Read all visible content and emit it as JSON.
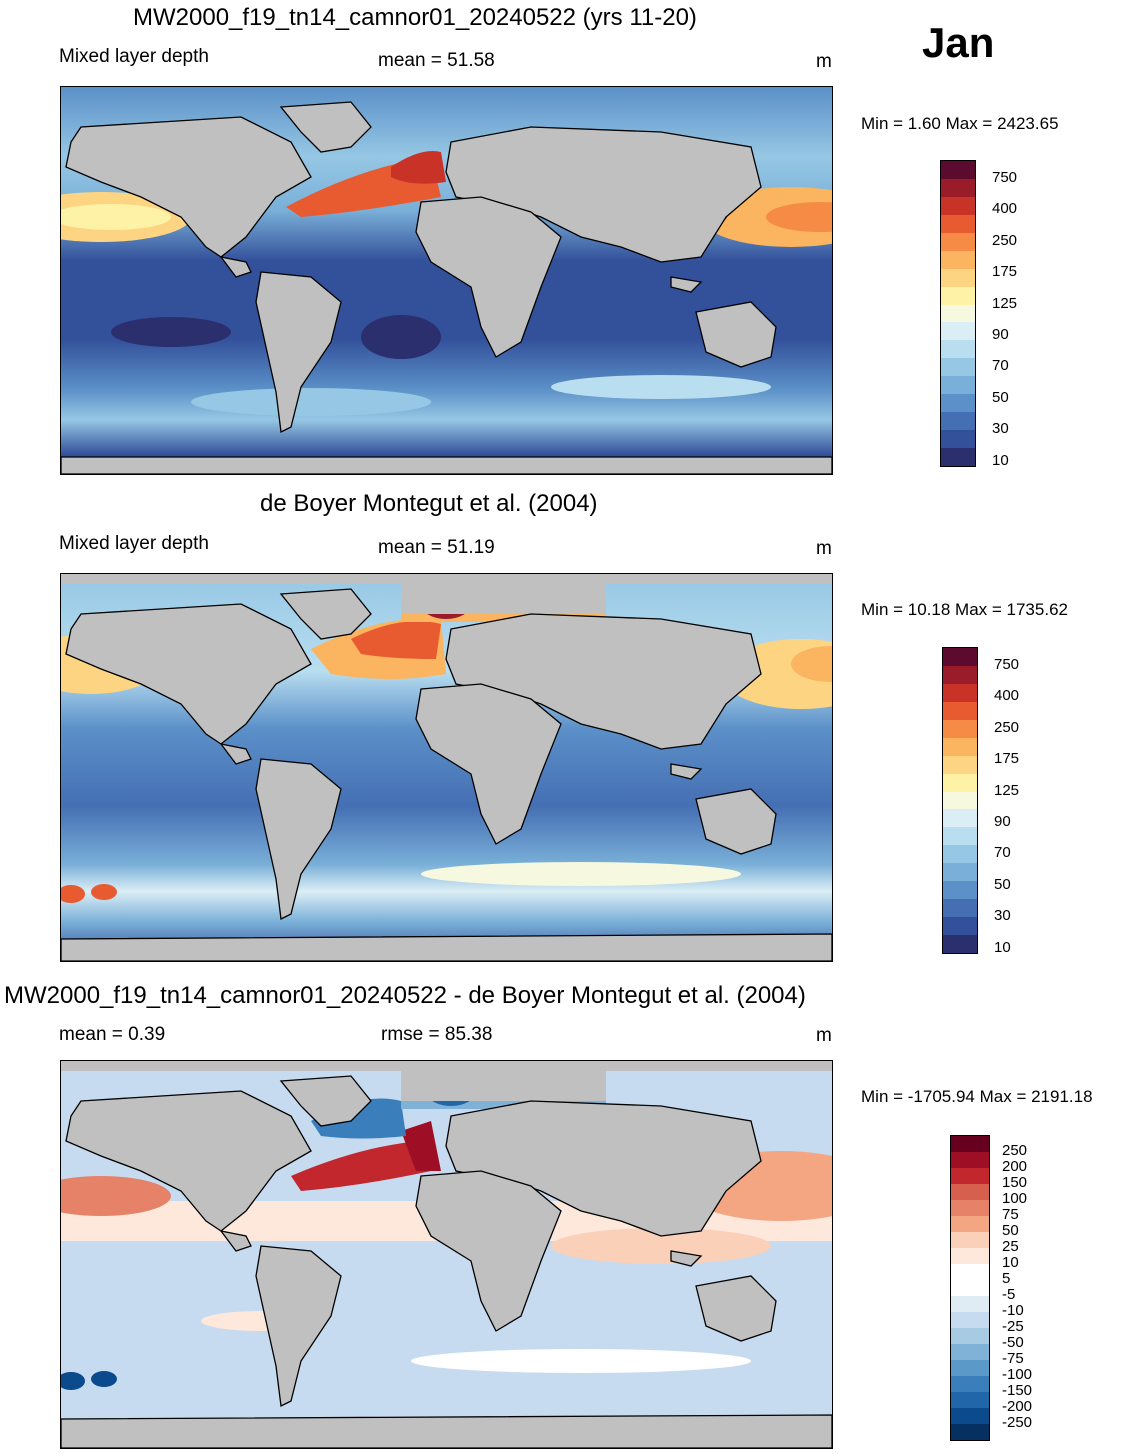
{
  "month": "Jan",
  "panels": [
    {
      "title": "MW2000_f19_tn14_camnor01_20240522 (yrs 11-20)",
      "left_label": "Mixed layer depth",
      "center_label": "mean =  51.58",
      "units": "m",
      "minmax": "Min =   1.60 Max = 2423.65",
      "colorbar_labels": [
        "750",
        "400",
        "250",
        "175",
        "125",
        "90",
        "70",
        "50",
        "30",
        "10"
      ]
    },
    {
      "title": "de Boyer Montegut et al. (2004)",
      "left_label": "Mixed layer depth",
      "center_label": "mean =  51.19",
      "units": "m",
      "minmax": "Min =  10.18 Max = 1735.62",
      "colorbar_labels": [
        "750",
        "400",
        "250",
        "175",
        "125",
        "90",
        "70",
        "50",
        "30",
        "10"
      ]
    },
    {
      "title": "MW2000_f19_tn14_camnor01_20240522 - de Boyer Montegut et al. (2004)",
      "left_label": "mean =   0.39",
      "center_label": "rmse =  85.38",
      "units": "m",
      "minmax": "Min = -1705.94 Max = 2191.18",
      "colorbar_labels": [
        "250",
        "200",
        "150",
        "100",
        "75",
        "50",
        "25",
        "10",
        "5",
        "-5",
        "-10",
        "-25",
        "-50",
        "-75",
        "-100",
        "-150",
        "-200",
        "-250"
      ]
    }
  ],
  "colors": {
    "land": "#c0c0c0",
    "coast": "#000000",
    "mld_scale": [
      "#5c0a2e",
      "#9a1b2a",
      "#c93227",
      "#e85a2f",
      "#f68b45",
      "#fbb45f",
      "#fdd582",
      "#fef2a6",
      "#f6f9e0",
      "#dbeef5",
      "#b9def0",
      "#96c7e4",
      "#79afd8",
      "#5b90c8",
      "#456fb3",
      "#33509a",
      "#2b2f6e"
    ],
    "diff_scale": [
      "#67001f",
      "#9e0f26",
      "#c1272d",
      "#d6604d",
      "#e58267",
      "#f4a582",
      "#fbd0b9",
      "#fde8db",
      "#ffffff",
      "#ffffff",
      "#e0ecf4",
      "#c6dbef",
      "#a6cbe3",
      "#7fb2d6",
      "#5a99c8",
      "#3a7ebb",
      "#2066a8",
      "#0b4a8c",
      "#053061"
    ]
  }
}
